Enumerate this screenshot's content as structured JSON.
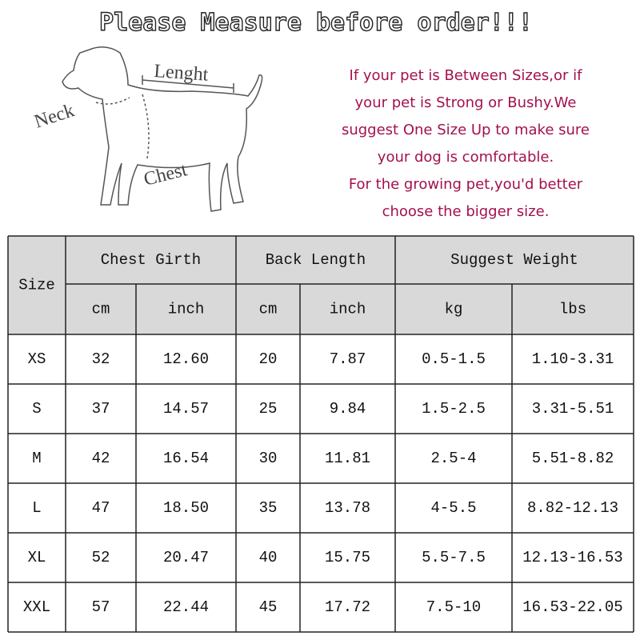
{
  "header": {
    "title": "Please Measure before order!!!"
  },
  "diagram": {
    "labels": [
      "Neck",
      "Lenght",
      "Chest"
    ]
  },
  "note": {
    "lines": [
      "If your pet is Between Sizes,or if",
      "your pet is Strong or Bushy.We",
      "suggest One Size Up to make sure",
      "your dog is comfortable.",
      "For the growing pet,you'd better",
      "choose the bigger size."
    ]
  },
  "table": {
    "corner": "Size",
    "groups": [
      "Chest Girth",
      "Back Length",
      "Suggest Weight"
    ],
    "units": [
      "cm",
      "inch",
      "cm",
      "inch",
      "kg",
      "lbs"
    ],
    "rows": [
      [
        "XS",
        "32",
        "12.60",
        "20",
        "7.87",
        "0.5-1.5",
        "1.10-3.31"
      ],
      [
        "S",
        "37",
        "14.57",
        "25",
        "9.84",
        "1.5-2.5",
        "3.31-5.51"
      ],
      [
        "M",
        "42",
        "16.54",
        "30",
        "11.81",
        "2.5-4",
        "5.51-8.82"
      ],
      [
        "L",
        "47",
        "18.50",
        "35",
        "13.78",
        "4-5.5",
        "8.82-12.13"
      ],
      [
        "XL",
        "52",
        "20.47",
        "40",
        "15.75",
        "5.5-7.5",
        "12.13-16.53"
      ],
      [
        "XXL",
        "57",
        "22.44",
        "45",
        "17.72",
        "7.5-10",
        "16.53-22.05"
      ]
    ]
  }
}
